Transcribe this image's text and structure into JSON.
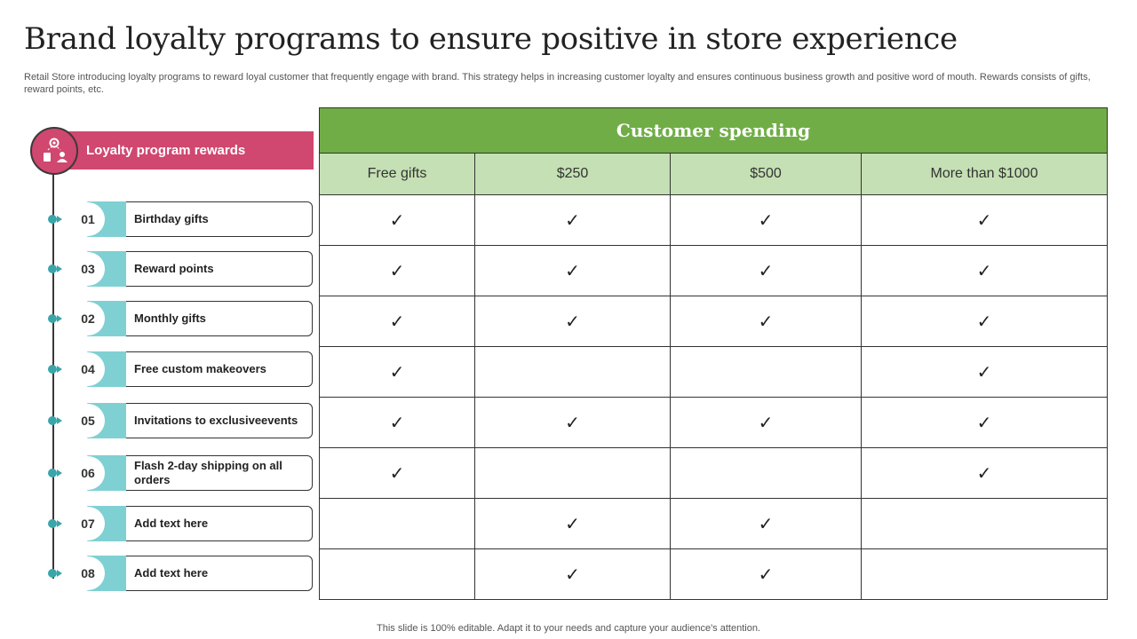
{
  "page": {
    "title": "Brand loyalty programs to ensure positive in store experience",
    "subtitle": "Retail Store introducing loyalty programs to reward loyal customer that frequently engage with brand. This strategy helps in increasing customer loyalty and ensures continuous business growth and positive word of mouth. Rewards consists of gifts, reward points, etc.",
    "footer": "This slide is 100% editable. Adapt it to your needs and capture your audience's attention."
  },
  "rewards": {
    "header": "Loyalty program rewards",
    "header_icon": "loyalty-network-icon",
    "items": [
      {
        "num": "01",
        "label": "Birthday gifts"
      },
      {
        "num": "03",
        "label": "Reward points"
      },
      {
        "num": "02",
        "label": "Monthly gifts"
      },
      {
        "num": "04",
        "label": "Free custom makeovers"
      },
      {
        "num": "05",
        "label": "Invitations to exclusiveevents"
      },
      {
        "num": "06",
        "label": "Flash 2-day shipping on all orders"
      },
      {
        "num": "07",
        "label": "Add text here"
      },
      {
        "num": "08",
        "label": "Add text here"
      }
    ]
  },
  "spending": {
    "title": "Customer spending",
    "columns": [
      "Free gifts",
      "$250",
      "$500",
      "More than $1000"
    ],
    "check_symbol": "✓",
    "rows": [
      [
        true,
        true,
        true,
        true
      ],
      [
        true,
        true,
        true,
        true
      ],
      [
        true,
        true,
        true,
        true
      ],
      [
        true,
        false,
        false,
        true
      ],
      [
        true,
        true,
        true,
        true
      ],
      [
        true,
        false,
        false,
        true
      ],
      [
        false,
        true,
        true,
        false
      ],
      [
        false,
        true,
        true,
        false
      ]
    ]
  },
  "colors": {
    "pink": "#d0476f",
    "green_header": "#70ad47",
    "green_light": "#c5e0b4",
    "teal": "#7fd0d3"
  }
}
